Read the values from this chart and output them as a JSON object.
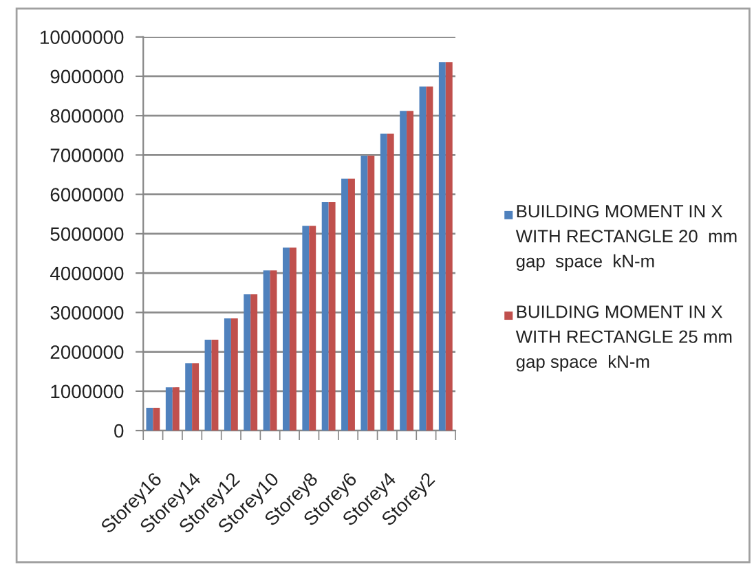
{
  "chart_data": {
    "type": "bar",
    "categories": [
      "Storey16",
      null,
      "Storey14",
      null,
      "Storey12",
      null,
      "Storey10",
      null,
      "Storey8",
      null,
      "Storey6",
      null,
      "Storey4",
      null,
      "Storey2",
      null
    ],
    "series": [
      {
        "name": "BUILDING MOMENT IN X WITH RECTANGLE 20  mm gap  space  kN-m",
        "color": "#4f81bd",
        "values": [
          580000,
          1100000,
          1710000,
          2310000,
          2850000,
          3460000,
          4070000,
          4650000,
          5200000,
          5800000,
          6400000,
          6980000,
          7540000,
          8120000,
          8740000,
          9360000
        ]
      },
      {
        "name": "BUILDING MOMENT IN X WITH RECTANGLE 25 mm gap space  kN-m",
        "color": "#c0504d",
        "values": [
          580000,
          1100000,
          1710000,
          2310000,
          2850000,
          3460000,
          4070000,
          4650000,
          5200000,
          5800000,
          6400000,
          6980000,
          7540000,
          8120000,
          8740000,
          9360000
        ]
      }
    ],
    "ylim": [
      0,
      10000000
    ],
    "yticks": [
      0,
      1000000,
      2000000,
      3000000,
      4000000,
      5000000,
      6000000,
      7000000,
      8000000,
      9000000,
      10000000
    ],
    "grid": "y",
    "legend": "right"
  }
}
